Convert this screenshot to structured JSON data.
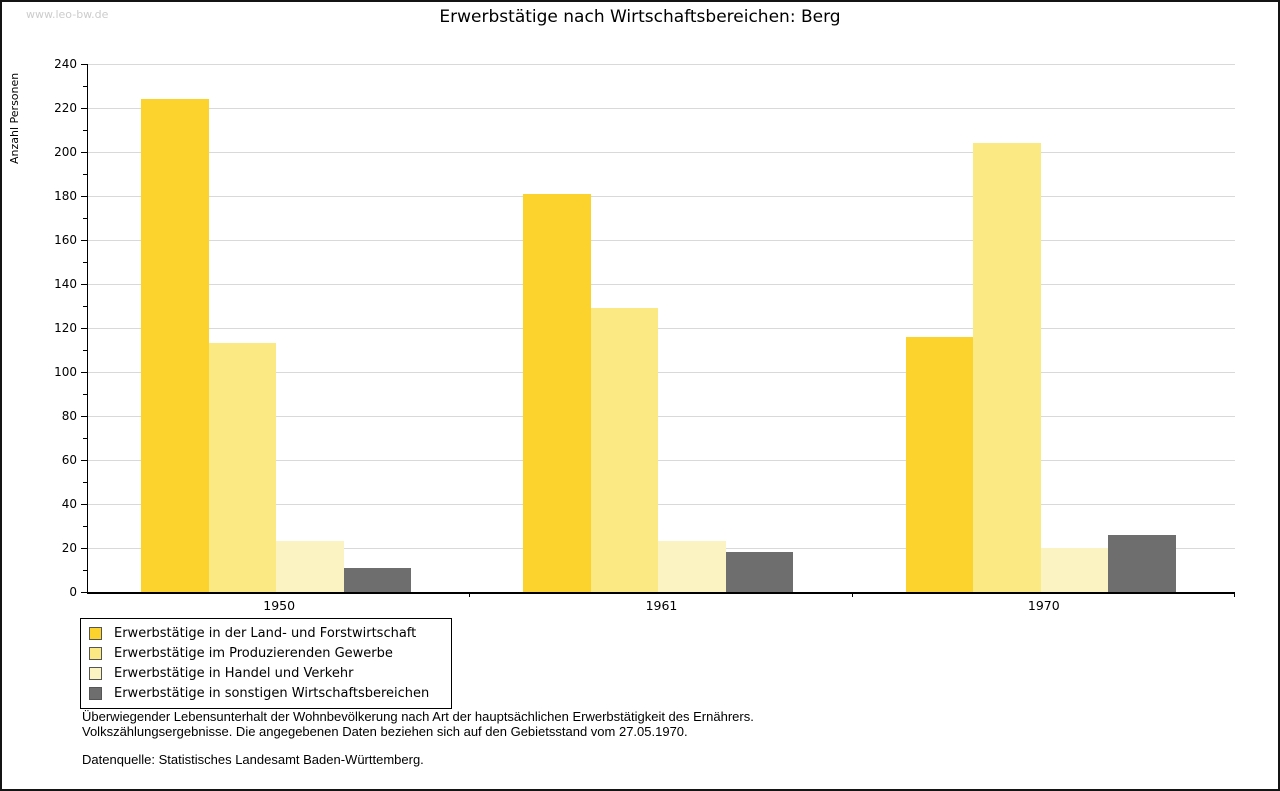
{
  "watermark": "www.leo-bw.de",
  "chart_data": {
    "type": "bar",
    "title": "Erwerbstätige nach Wirtschaftsbereichen: Berg",
    "ylabel": "Anzahl Personen",
    "xlabel": "",
    "categories": [
      "1950",
      "1961",
      "1970"
    ],
    "series": [
      {
        "name": "Erwerbstätige in der Land- und Forstwirtschaft",
        "color": "#FCD32C",
        "values": [
          224,
          181,
          116
        ]
      },
      {
        "name": "Erwerbstätige im Produzierenden Gewerbe",
        "color": "#FBE983",
        "values": [
          113,
          129,
          204
        ]
      },
      {
        "name": "Erwerbstätige in Handel und Verkehr",
        "color": "#FBF3C1",
        "values": [
          23,
          23,
          20
        ]
      },
      {
        "name": "Erwerbstätige in sonstigen Wirtschaftsbereichen",
        "color": "#6E6E6E",
        "values": [
          11,
          18,
          26
        ]
      }
    ],
    "ylim": [
      0,
      240
    ],
    "y_major_step": 20,
    "y_minor_step": 10,
    "grid": true,
    "legend_position": "bottom-left",
    "colors": {
      "gridline": "#d9d9d9",
      "axis": "#000000",
      "watermark": "#cccccc"
    }
  },
  "footnotes": {
    "line1": "Überwiegender Lebensunterhalt der Wohnbevölkerung nach Art der hauptsächlichen Erwerbstätigkeit des Ernährers.",
    "line2": "Volkszählungsergebnisse. Die angegebenen Daten beziehen sich auf den Gebietsstand vom 27.05.1970.",
    "source": "Datenquelle: Statistisches Landesamt Baden-Württemberg."
  }
}
